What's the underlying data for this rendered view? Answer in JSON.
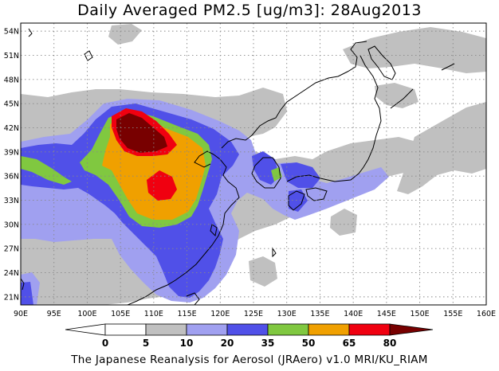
{
  "title": "Daily Averaged PM2.5 [ug/m3]: 28Aug2013",
  "footer": "The Japanese Reanalysis for Aerosol (JRAero) v1.0 MRI/KU_RIAM",
  "map": {
    "lon_range": [
      90,
      160
    ],
    "lat_range": [
      20,
      55
    ],
    "lon_ticks": [
      "90E",
      "95E",
      "100E",
      "105E",
      "110E",
      "115E",
      "120E",
      "125E",
      "130E",
      "135E",
      "140E",
      "145E",
      "150E",
      "155E",
      "160E"
    ],
    "lat_ticks": [
      "54N",
      "51N",
      "48N",
      "45N",
      "42N",
      "39N",
      "36N",
      "33N",
      "30N",
      "27N",
      "24N",
      "21N"
    ]
  },
  "colorbar": {
    "labels": [
      "0",
      "5",
      "10",
      "20",
      "35",
      "50",
      "65",
      "80"
    ],
    "colors": {
      "lt0": "#ffffff",
      "c0_5": "#ffffff",
      "c5_10": "#c0c0c0",
      "c10_20": "#a0a0f0",
      "c20_35": "#5050e8",
      "c35_50": "#80c840",
      "c50_65": "#f0a000",
      "c65_80": "#f00010",
      "gt80": "#780000"
    }
  }
}
